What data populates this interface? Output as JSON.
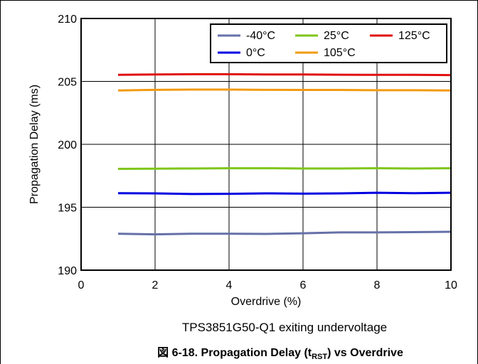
{
  "chart_data": {
    "type": "line",
    "subtitle": "TPS3851G50-Q1 exiting undervoltage",
    "caption": {
      "prefix": "図 6-18. Propagation Delay (t",
      "subscript": "RST",
      "suffix": ") vs Overdrive"
    },
    "xlabel": "Overdrive (%)",
    "ylabel": "Propagation Delay (ms)",
    "xlim": [
      0,
      10
    ],
    "ylim": [
      190,
      210
    ],
    "xticks": [
      "0",
      "2",
      "4",
      "6",
      "8",
      "10"
    ],
    "yticks": [
      "190",
      "195",
      "200",
      "205",
      "210"
    ],
    "grid": true,
    "legend_position": "top-right",
    "x": [
      1,
      2,
      3,
      4,
      5,
      6,
      7,
      8,
      9,
      10
    ],
    "series": [
      {
        "name": "-40°C",
        "color": "#6670a8",
        "values": [
          192.9,
          192.85,
          192.9,
          192.9,
          192.88,
          192.93,
          193.0,
          193.0,
          193.02,
          193.05
        ]
      },
      {
        "name": "0°C",
        "color": "#0000e0",
        "values": [
          196.12,
          196.1,
          196.05,
          196.07,
          196.1,
          196.08,
          196.1,
          196.15,
          196.12,
          196.15
        ]
      },
      {
        "name": "25°C",
        "color": "#7ec61a",
        "values": [
          198.05,
          198.07,
          198.08,
          198.1,
          198.1,
          198.08,
          198.08,
          198.1,
          198.08,
          198.1
        ]
      },
      {
        "name": "105°C",
        "color": "#f29a10",
        "values": [
          204.28,
          204.33,
          204.35,
          204.35,
          204.33,
          204.32,
          204.32,
          204.3,
          204.3,
          204.28
        ]
      },
      {
        "name": "125°C",
        "color": "#e01010",
        "values": [
          205.52,
          205.55,
          205.57,
          205.57,
          205.55,
          205.55,
          205.53,
          205.52,
          205.52,
          205.5
        ]
      }
    ],
    "legend_order": [
      0,
      2,
      4,
      1,
      3
    ]
  }
}
